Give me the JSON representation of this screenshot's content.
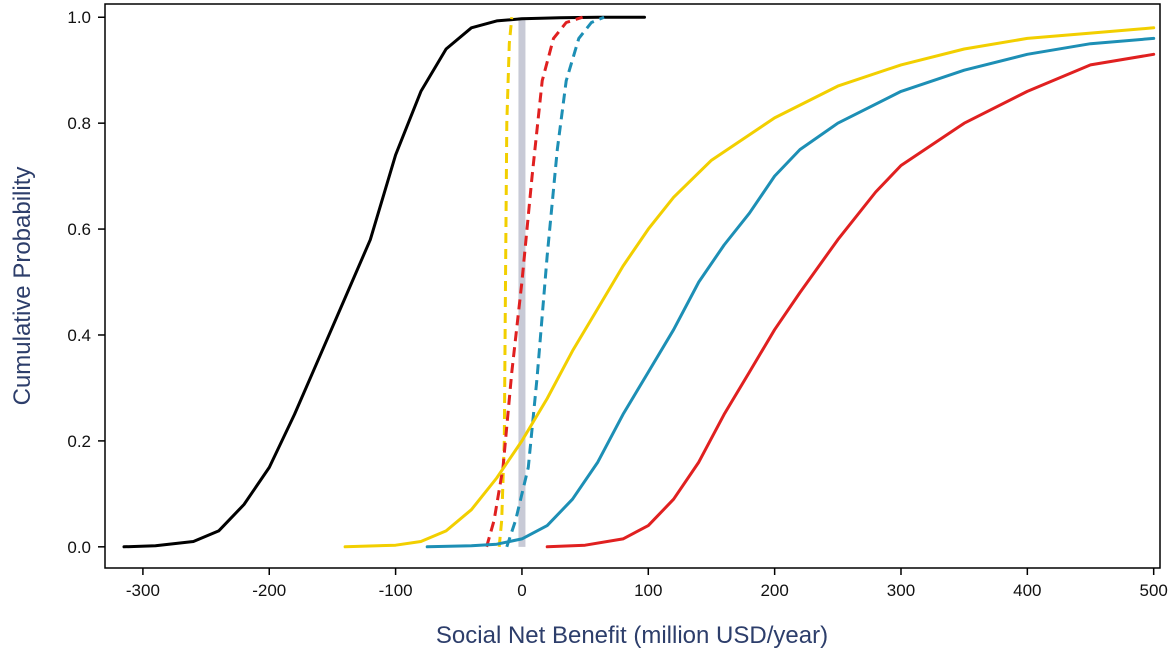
{
  "chart_data": {
    "type": "line",
    "xlabel": "Social Net Benefit (million USD/year)",
    "ylabel": "Cumulative Probability",
    "xlim": [
      -330,
      505
    ],
    "ylim": [
      -0.04,
      1.025
    ],
    "xticks": [
      -300,
      -200,
      -100,
      0,
      100,
      200,
      300,
      400,
      500
    ],
    "xtick_labels": [
      "-300",
      "-200",
      "-100",
      "0",
      "100",
      "200",
      "300",
      "400",
      "500"
    ],
    "yticks": [
      0.0,
      0.2,
      0.4,
      0.6,
      0.8,
      1.0
    ],
    "ytick_labels": [
      "0.0",
      "0.2",
      "0.4",
      "0.6",
      "0.8",
      "1.0"
    ],
    "grid": false,
    "legend": "none",
    "label_color": "#2d3e6b",
    "reference_line": {
      "x": 0,
      "color": "#c8cad6"
    },
    "series": [
      {
        "color": "#000000",
        "dashed": false,
        "points": [
          [
            -315,
            0.0
          ],
          [
            -290,
            0.002
          ],
          [
            -260,
            0.01
          ],
          [
            -240,
            0.03
          ],
          [
            -220,
            0.08
          ],
          [
            -200,
            0.15
          ],
          [
            -180,
            0.25
          ],
          [
            -160,
            0.36
          ],
          [
            -140,
            0.47
          ],
          [
            -120,
            0.58
          ],
          [
            -100,
            0.74
          ],
          [
            -80,
            0.86
          ],
          [
            -60,
            0.94
          ],
          [
            -40,
            0.98
          ],
          [
            -20,
            0.993
          ],
          [
            0,
            0.997
          ],
          [
            30,
            0.999
          ],
          [
            60,
            1.0
          ],
          [
            97,
            1.0
          ]
        ]
      },
      {
        "color": "#f2cf00",
        "dashed": true,
        "points": [
          [
            -18,
            0.0
          ],
          [
            -16,
            0.05
          ],
          [
            -14,
            0.2
          ],
          [
            -13,
            0.5
          ],
          [
            -12,
            0.8
          ],
          [
            -10,
            0.95
          ],
          [
            -8,
            1.0
          ]
        ]
      },
      {
        "color": "#e02020",
        "dashed": true,
        "points": [
          [
            -28,
            0.0
          ],
          [
            -22,
            0.05
          ],
          [
            -15,
            0.15
          ],
          [
            -8,
            0.33
          ],
          [
            0,
            0.5
          ],
          [
            8,
            0.7
          ],
          [
            16,
            0.88
          ],
          [
            25,
            0.96
          ],
          [
            35,
            0.99
          ],
          [
            48,
            1.0
          ]
        ]
      },
      {
        "color": "#1d8fb5",
        "dashed": true,
        "points": [
          [
            -12,
            0.0
          ],
          [
            -5,
            0.05
          ],
          [
            5,
            0.15
          ],
          [
            12,
            0.32
          ],
          [
            20,
            0.55
          ],
          [
            28,
            0.75
          ],
          [
            35,
            0.88
          ],
          [
            45,
            0.96
          ],
          [
            55,
            0.99
          ],
          [
            65,
            1.0
          ]
        ]
      },
      {
        "color": "#f2cf00",
        "dashed": false,
        "points": [
          [
            -140,
            0.0
          ],
          [
            -100,
            0.003
          ],
          [
            -80,
            0.01
          ],
          [
            -60,
            0.03
          ],
          [
            -40,
            0.07
          ],
          [
            -20,
            0.13
          ],
          [
            0,
            0.2
          ],
          [
            20,
            0.28
          ],
          [
            40,
            0.37
          ],
          [
            60,
            0.45
          ],
          [
            80,
            0.53
          ],
          [
            100,
            0.6
          ],
          [
            120,
            0.66
          ],
          [
            150,
            0.73
          ],
          [
            200,
            0.81
          ],
          [
            250,
            0.87
          ],
          [
            300,
            0.91
          ],
          [
            350,
            0.94
          ],
          [
            400,
            0.96
          ],
          [
            450,
            0.97
          ],
          [
            500,
            0.98
          ]
        ]
      },
      {
        "color": "#1d8fb5",
        "dashed": false,
        "points": [
          [
            -75,
            0.0
          ],
          [
            -40,
            0.002
          ],
          [
            -20,
            0.005
          ],
          [
            0,
            0.015
          ],
          [
            20,
            0.04
          ],
          [
            40,
            0.09
          ],
          [
            60,
            0.16
          ],
          [
            80,
            0.25
          ],
          [
            100,
            0.33
          ],
          [
            120,
            0.41
          ],
          [
            140,
            0.5
          ],
          [
            160,
            0.57
          ],
          [
            180,
            0.63
          ],
          [
            200,
            0.7
          ],
          [
            220,
            0.75
          ],
          [
            250,
            0.8
          ],
          [
            300,
            0.86
          ],
          [
            350,
            0.9
          ],
          [
            400,
            0.93
          ],
          [
            450,
            0.95
          ],
          [
            500,
            0.96
          ]
        ]
      },
      {
        "color": "#e02020",
        "dashed": false,
        "points": [
          [
            20,
            0.0
          ],
          [
            50,
            0.003
          ],
          [
            80,
            0.015
          ],
          [
            100,
            0.04
          ],
          [
            120,
            0.09
          ],
          [
            140,
            0.16
          ],
          [
            160,
            0.25
          ],
          [
            180,
            0.33
          ],
          [
            200,
            0.41
          ],
          [
            220,
            0.48
          ],
          [
            250,
            0.58
          ],
          [
            280,
            0.67
          ],
          [
            300,
            0.72
          ],
          [
            350,
            0.8
          ],
          [
            400,
            0.86
          ],
          [
            450,
            0.91
          ],
          [
            500,
            0.93
          ]
        ]
      }
    ]
  }
}
